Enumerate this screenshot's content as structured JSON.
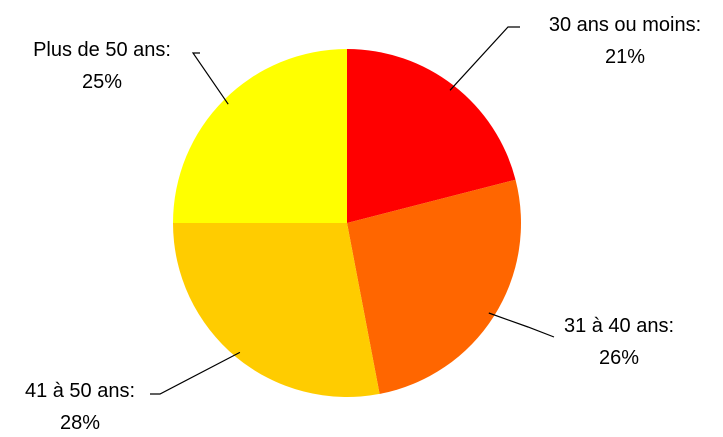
{
  "chart_data": {
    "type": "pie",
    "title": "",
    "slices": [
      {
        "label": "30 ans ou moins:",
        "value": 21,
        "value_label": "21%",
        "color": "#FF0000"
      },
      {
        "label": "31 à 40 ans:",
        "value": 26,
        "value_label": "26%",
        "color": "#FF6600"
      },
      {
        "label": "41 à 50 ans:",
        "value": 28,
        "value_label": "28%",
        "color": "#FFCC00"
      },
      {
        "label": "Plus de 50 ans:",
        "value": 25,
        "value_label": "25%",
        "color": "#FFFF00"
      }
    ],
    "start_angle": "12 o'clock",
    "direction": "clockwise",
    "legend": "none",
    "data_labels": "outside with leader lines"
  }
}
